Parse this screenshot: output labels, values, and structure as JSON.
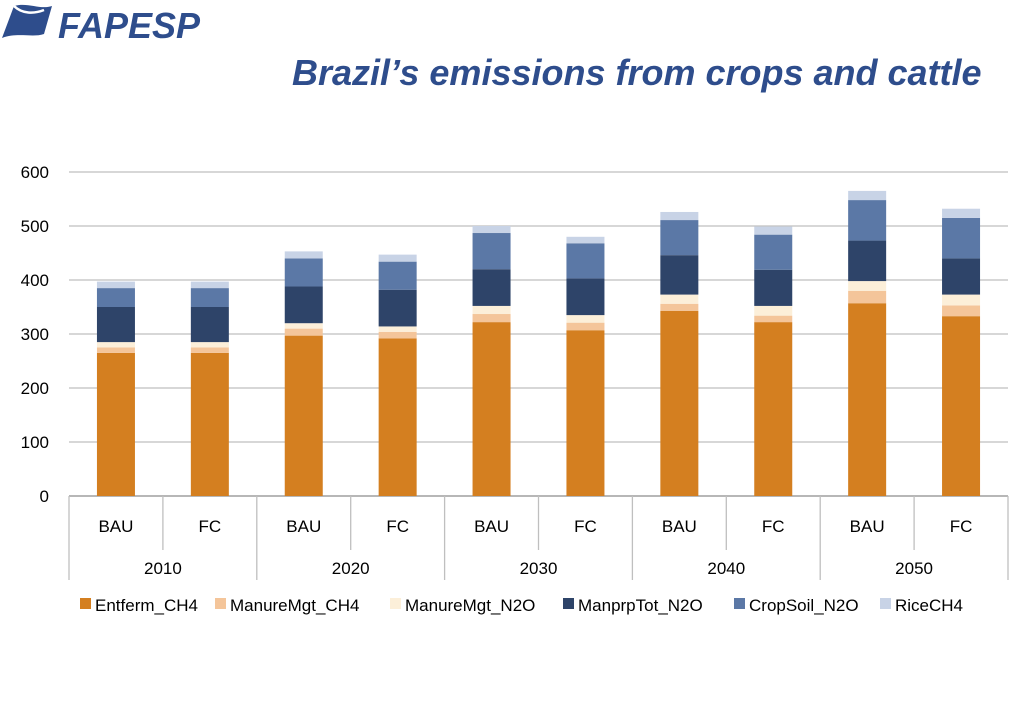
{
  "header": {
    "logo_text": "FAPESP",
    "title": "Brazil’s emissions from crops and cattle"
  },
  "colors": {
    "title": "#2e4d8c",
    "logo": "#2e4d8c",
    "grid": "#bfbfbf",
    "axis": "#8c8c8c"
  },
  "chart_data": {
    "type": "bar",
    "stacked": true,
    "title": "",
    "xlabel": "",
    "ylabel": "",
    "ylim": [
      0,
      600
    ],
    "yticks": [
      0,
      100,
      200,
      300,
      400,
      500,
      600
    ],
    "grid": true,
    "legend_position": "bottom",
    "categories": [
      "BAU",
      "FC",
      "BAU",
      "FC",
      "BAU",
      "FC",
      "BAU",
      "FC",
      "BAU",
      "FC"
    ],
    "groups": [
      {
        "label": "2010",
        "span": 2
      },
      {
        "label": "2020",
        "span": 2
      },
      {
        "label": "2030",
        "span": 2
      },
      {
        "label": "2040",
        "span": 2
      },
      {
        "label": "2050",
        "span": 2
      }
    ],
    "series": [
      {
        "name": "Entferm_CH4",
        "color": "#d47f20",
        "values": [
          265,
          265,
          297,
          292,
          322,
          307,
          343,
          322,
          357,
          333
        ]
      },
      {
        "name": "ManureMgt_CH4",
        "color": "#f4c59a",
        "values": [
          10,
          10,
          13,
          12,
          15,
          14,
          13,
          12,
          23,
          20
        ]
      },
      {
        "name": "ManureMgt_N2O",
        "color": "#fcefd9",
        "values": [
          10,
          10,
          10,
          10,
          15,
          14,
          17,
          18,
          18,
          20
        ]
      },
      {
        "name": "ManprpTot_N2O",
        "color": "#2e4469",
        "values": [
          65,
          65,
          68,
          68,
          68,
          68,
          73,
          67,
          75,
          67
        ]
      },
      {
        "name": "CropSoil_N2O",
        "color": "#5b78a6",
        "values": [
          35,
          35,
          52,
          52,
          67,
          65,
          65,
          65,
          75,
          75
        ]
      },
      {
        "name": "RiceCH4",
        "color": "#c8d3e6",
        "values": [
          12,
          12,
          13,
          13,
          13,
          12,
          15,
          15,
          17,
          17
        ]
      }
    ]
  }
}
